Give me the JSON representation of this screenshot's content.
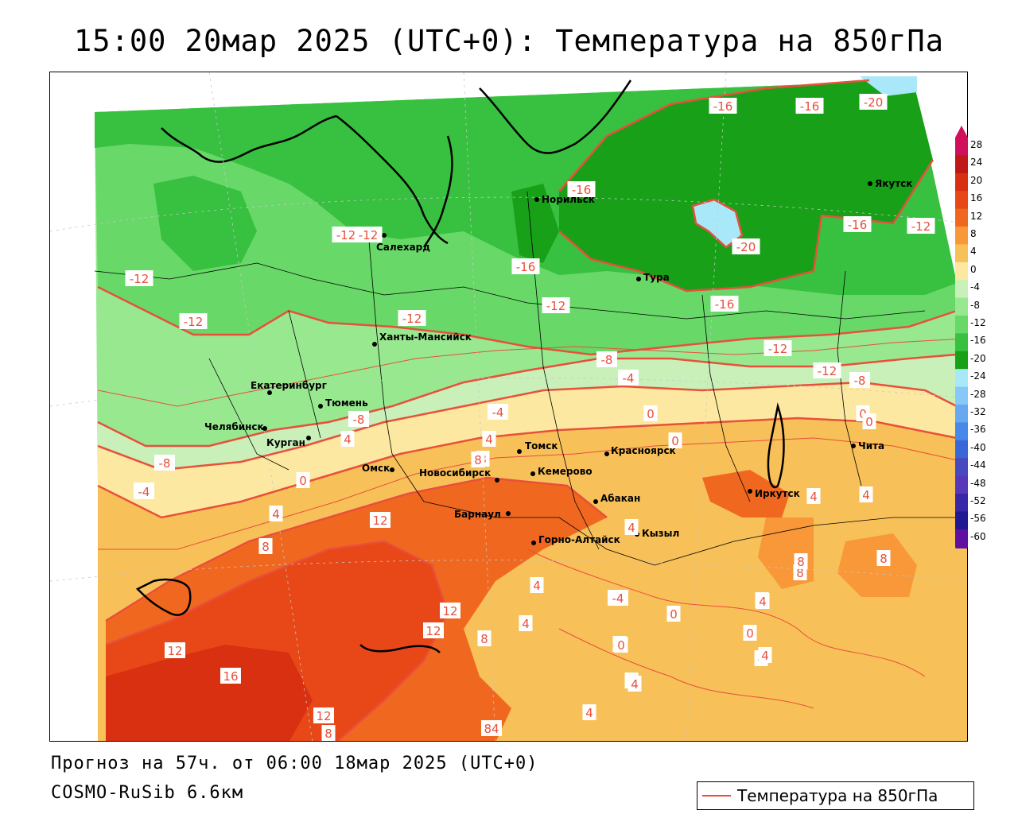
{
  "header": {
    "title": "15:00 20мар 2025 (UTC+0): Температура на 850гПа"
  },
  "footer": {
    "forecast": "Прогноз на 57ч. от 06:00 18мар 2025 (UTC+0)",
    "model": "COSMO-RuSib 6.6км"
  },
  "legend": {
    "label": "Температура на 850гПа",
    "line_color": "#e8503c"
  },
  "scale": {
    "labels": [
      "28",
      "24",
      "20",
      "16",
      "12",
      "8",
      "4",
      "0",
      "-4",
      "-8",
      "-12",
      "-16",
      "-20",
      "-24",
      "-28",
      "-32",
      "-36",
      "-40",
      "-44",
      "-48",
      "-52",
      "-56",
      "-60"
    ],
    "colors": [
      "#d0105a",
      "#c01818",
      "#d83010",
      "#e84818",
      "#f06820",
      "#f89838",
      "#f8c058",
      "#fce8a0",
      "#c8f0b8",
      "#98e890",
      "#68d868",
      "#38c040",
      "#18a018",
      "#a8e8f8",
      "#88c8f8",
      "#68a8f0",
      "#4888e8",
      "#3868d8",
      "#4848c0",
      "#5838b8",
      "#3828a8",
      "#201890",
      "#6010a0"
    ]
  },
  "cities": [
    {
      "name": "Норильск"
    },
    {
      "name": "Якутск"
    },
    {
      "name": "Салехард"
    },
    {
      "name": "Тура"
    },
    {
      "name": "Ханты-Мансийск"
    },
    {
      "name": "Екатеринбург"
    },
    {
      "name": "Тюмень"
    },
    {
      "name": "Челябинск"
    },
    {
      "name": "Курган"
    },
    {
      "name": "Омск"
    },
    {
      "name": "Новосибирск"
    },
    {
      "name": "Томск"
    },
    {
      "name": "Кемерово"
    },
    {
      "name": "Красноярск"
    },
    {
      "name": "Абакан"
    },
    {
      "name": "Барнаул"
    },
    {
      "name": "Горно-Алтайск"
    },
    {
      "name": "Кызыл"
    },
    {
      "name": "Иркутск"
    },
    {
      "name": "Чита"
    }
  ],
  "isotherm_labels": [
    "-16",
    "-16",
    "-20",
    "-16",
    "-20",
    "-16",
    "-12",
    "-12",
    "-12",
    "-12",
    "-16",
    "-12",
    "-16",
    "-12",
    "-12",
    "-12",
    "-8",
    "-4",
    "-12",
    "-8",
    "-4",
    "0",
    "0",
    "0",
    "-8",
    "-4",
    "4",
    "4",
    "0",
    "4",
    "8",
    "-8",
    "-4",
    "0",
    "4",
    "4",
    "8",
    "12",
    "8",
    "12",
    "12",
    "12",
    "16",
    "8",
    "4",
    "4",
    "4",
    "0",
    "-4",
    "8",
    "4",
    "0",
    "0",
    "4",
    "4",
    "4",
    "0",
    "4",
    "8",
    "8",
    "12",
    "8",
    "84",
    "4",
    "4"
  ]
}
